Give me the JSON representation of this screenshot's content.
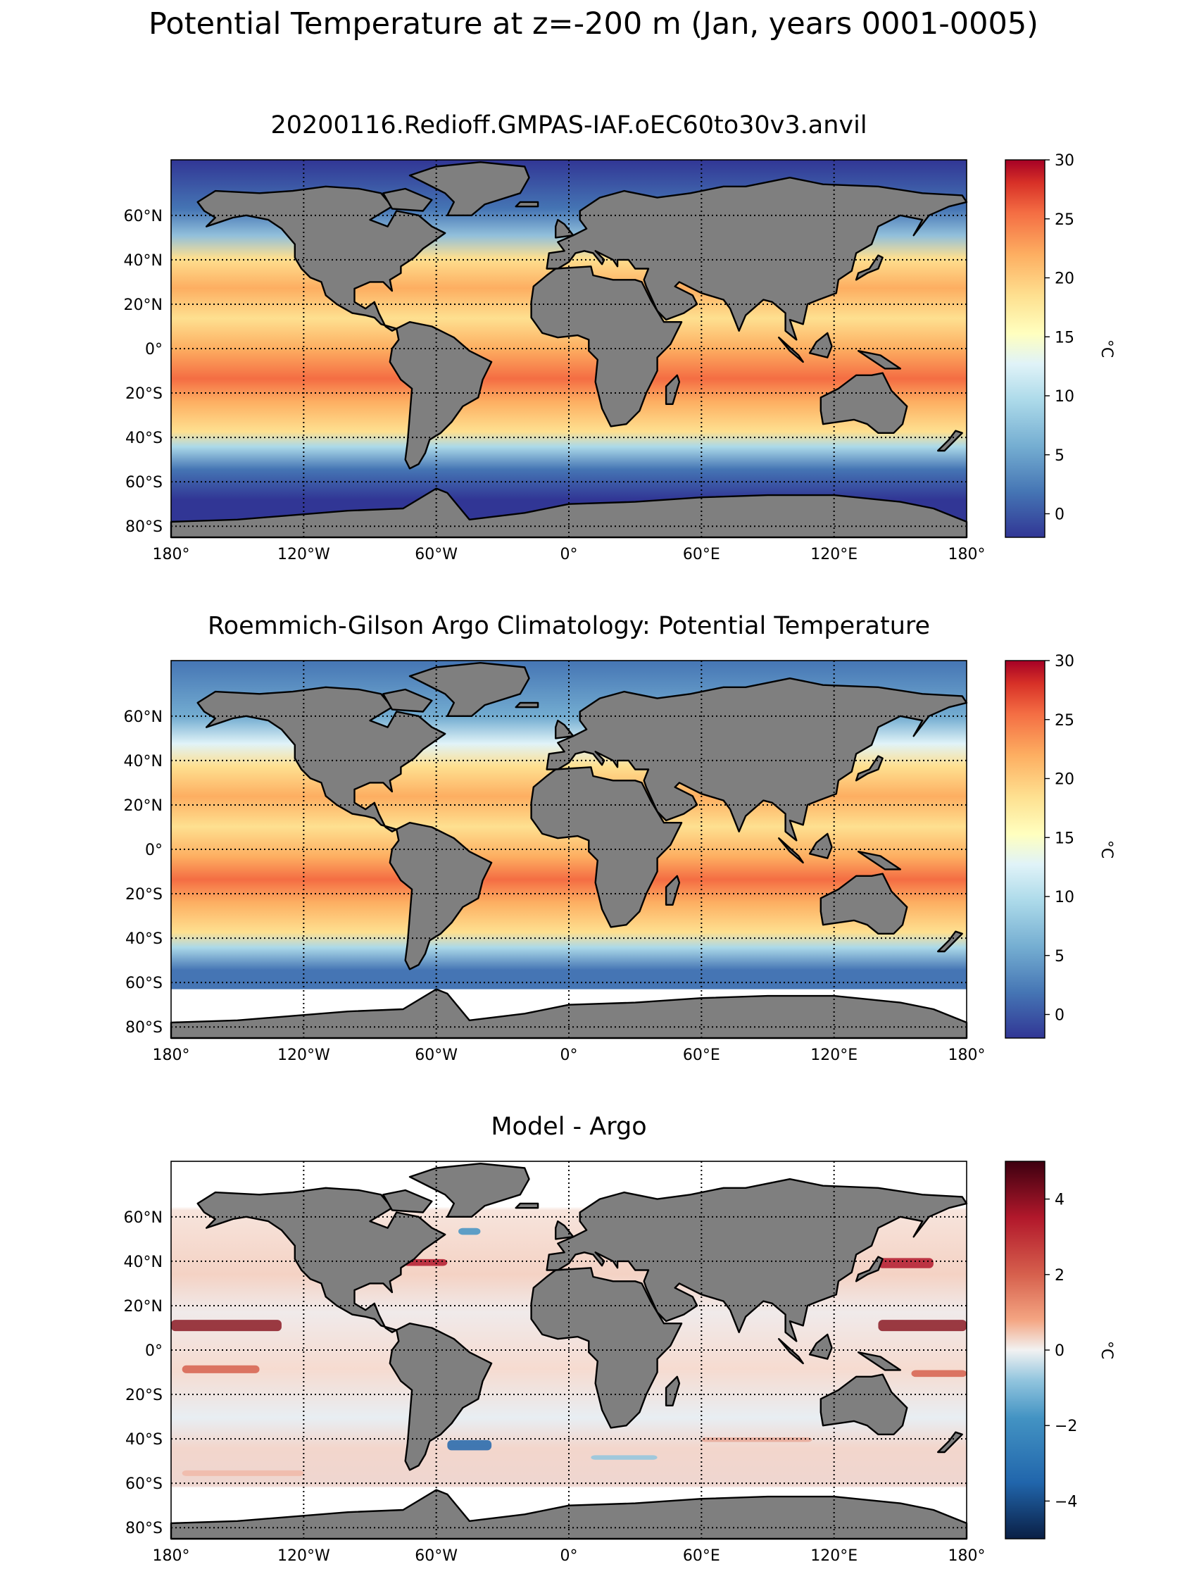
{
  "suptitle": "Potential Temperature at z=-200 m (Jan, years 0001-0005)",
  "lon_ticks": [
    "180°",
    "120°W",
    "60°W",
    "0°",
    "60°E",
    "120°E",
    "180°"
  ],
  "lat_ticks": [
    "60°N",
    "40°N",
    "20°N",
    "0°",
    "20°S",
    "40°S",
    "60°S",
    "80°S"
  ],
  "land_color": "#7f7f7f",
  "panels": [
    {
      "title": "20200116.Redioff.GMPAS-IAF.oEC60to30v3.anvil",
      "colormap": "RdYlBu_r",
      "cbar_ticks": [
        "30",
        "25",
        "20",
        "15",
        "10",
        "5",
        "0"
      ],
      "cbar_label": "°C"
    },
    {
      "title": "Roemmich-Gilson Argo Climatology: Potential Temperature",
      "colormap": "RdYlBu_r",
      "cbar_ticks": [
        "30",
        "25",
        "20",
        "15",
        "10",
        "5",
        "0"
      ],
      "cbar_label": "°C"
    },
    {
      "title": "Model - Argo",
      "colormap": "RdBu_r",
      "cbar_ticks": [
        "4",
        "2",
        "0",
        "−2",
        "−4"
      ],
      "cbar_label": "°C"
    }
  ]
}
